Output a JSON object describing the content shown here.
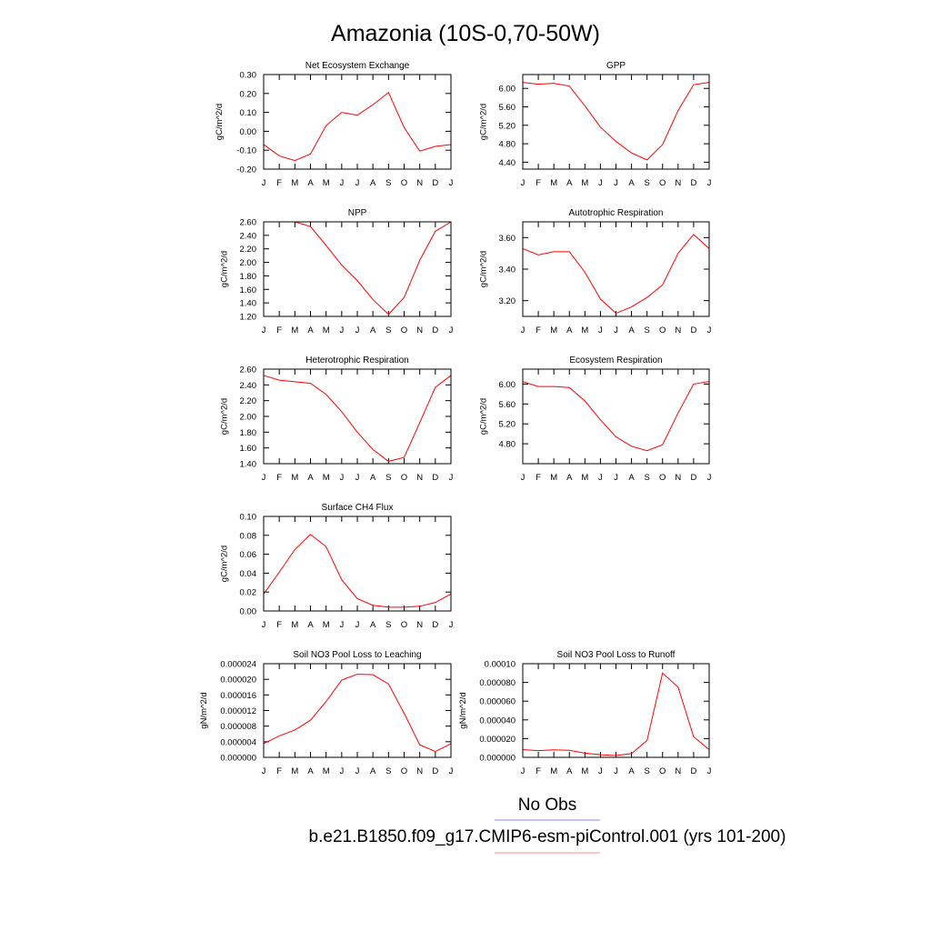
{
  "title": "Amazonia (10S-0,70-50W)",
  "legend": [
    {
      "label": "No Obs",
      "color": "#8888ff"
    },
    {
      "label": "b.e21.B1850.f09_g17.CMIP6-esm-piControl.001 (yrs 101-200)",
      "color": "#ff8888"
    }
  ],
  "chart_data": [
    {
      "type": "line",
      "title": "Net Ecosystem Exchange",
      "ylabel": "gC/m^2/d",
      "x": [
        "J",
        "F",
        "M",
        "A",
        "M",
        "J",
        "J",
        "A",
        "S",
        "O",
        "N",
        "D",
        "J"
      ],
      "ylim": [
        -0.2,
        0.3
      ],
      "yticks": [
        -0.2,
        -0.1,
        0.0,
        0.1,
        0.2,
        0.3
      ],
      "ytick_labels": [
        "-0.20",
        "-0.10",
        "0.00",
        "0.10",
        "0.20",
        "0.30"
      ],
      "series": [
        {
          "color": "#ff0000",
          "values": [
            -0.07,
            -0.13,
            -0.155,
            -0.12,
            0.03,
            0.1,
            0.085,
            0.14,
            0.205,
            0.02,
            -0.105,
            -0.08,
            -0.07
          ]
        }
      ]
    },
    {
      "type": "line",
      "title": "GPP",
      "ylabel": "gC/m^2/d",
      "x": [
        "J",
        "F",
        "M",
        "A",
        "M",
        "J",
        "J",
        "A",
        "S",
        "O",
        "N",
        "D",
        "J"
      ],
      "ylim": [
        4.25,
        6.3
      ],
      "yticks": [
        4.4,
        4.8,
        5.2,
        5.6,
        6.0
      ],
      "ytick_labels": [
        "4.40",
        "4.80",
        "5.20",
        "5.60",
        "6.00"
      ],
      "series": [
        {
          "color": "#ff0000",
          "values": [
            6.13,
            6.09,
            6.11,
            6.05,
            5.62,
            5.16,
            4.85,
            4.6,
            4.45,
            4.78,
            5.52,
            6.08,
            6.13
          ]
        }
      ]
    },
    {
      "type": "line",
      "title": "NPP",
      "ylabel": "gC/m^2/d",
      "x": [
        "J",
        "F",
        "M",
        "A",
        "M",
        "J",
        "J",
        "A",
        "S",
        "O",
        "N",
        "D",
        "J"
      ],
      "ylim": [
        1.2,
        2.6
      ],
      "yticks": [
        1.2,
        1.4,
        1.6,
        1.8,
        2.0,
        2.2,
        2.4,
        2.6
      ],
      "ytick_labels": [
        "1.20",
        "1.40",
        "1.60",
        "1.80",
        "2.00",
        "2.20",
        "2.40",
        "2.60"
      ],
      "series": [
        {
          "color": "#ff0000",
          "values": [
            2.6,
            2.6,
            2.6,
            2.53,
            2.25,
            1.96,
            1.73,
            1.45,
            1.23,
            1.48,
            2.03,
            2.46,
            2.6
          ]
        }
      ]
    },
    {
      "type": "line",
      "title": "Autotrophic Respiration",
      "ylabel": "gC/m^2/d",
      "x": [
        "J",
        "F",
        "M",
        "A",
        "M",
        "J",
        "J",
        "A",
        "S",
        "O",
        "N",
        "D",
        "J"
      ],
      "ylim": [
        3.1,
        3.7
      ],
      "yticks": [
        3.2,
        3.4,
        3.6
      ],
      "ytick_labels": [
        "3.20",
        "3.40",
        "3.60"
      ],
      "series": [
        {
          "color": "#ff0000",
          "values": [
            3.53,
            3.49,
            3.51,
            3.51,
            3.38,
            3.21,
            3.12,
            3.16,
            3.22,
            3.3,
            3.5,
            3.62,
            3.53
          ]
        }
      ]
    },
    {
      "type": "line",
      "title": "Heterotrophic Respiration",
      "ylabel": "gC/m^2/d",
      "x": [
        "J",
        "F",
        "M",
        "A",
        "M",
        "J",
        "J",
        "A",
        "S",
        "O",
        "N",
        "D",
        "J"
      ],
      "ylim": [
        1.4,
        2.6
      ],
      "yticks": [
        1.4,
        1.6,
        1.8,
        2.0,
        2.2,
        2.4,
        2.6
      ],
      "ytick_labels": [
        "1.40",
        "1.60",
        "1.80",
        "2.00",
        "2.20",
        "2.40",
        "2.60"
      ],
      "series": [
        {
          "color": "#ff0000",
          "values": [
            2.52,
            2.46,
            2.44,
            2.42,
            2.28,
            2.06,
            1.8,
            1.58,
            1.43,
            1.48,
            1.92,
            2.37,
            2.52
          ]
        }
      ]
    },
    {
      "type": "line",
      "title": "Ecosystem Respiration",
      "ylabel": "gC/m^2/d",
      "x": [
        "J",
        "F",
        "M",
        "A",
        "M",
        "J",
        "J",
        "A",
        "S",
        "O",
        "N",
        "D",
        "J"
      ],
      "ylim": [
        4.4,
        6.3
      ],
      "yticks": [
        4.8,
        5.2,
        5.6,
        6.0
      ],
      "ytick_labels": [
        "4.80",
        "5.20",
        "5.60",
        "6.00"
      ],
      "series": [
        {
          "color": "#ff0000",
          "values": [
            6.05,
            5.95,
            5.95,
            5.93,
            5.66,
            5.28,
            4.94,
            4.75,
            4.66,
            4.78,
            5.42,
            6.0,
            6.05
          ]
        }
      ]
    },
    {
      "type": "line",
      "title": "Surface CH4 Flux",
      "ylabel": "gC/m^2/d",
      "x": [
        "J",
        "F",
        "M",
        "A",
        "M",
        "J",
        "J",
        "A",
        "S",
        "O",
        "N",
        "D",
        "J"
      ],
      "ylim": [
        0.0,
        0.1
      ],
      "yticks": [
        0.0,
        0.02,
        0.04,
        0.06,
        0.08,
        0.1
      ],
      "ytick_labels": [
        "0.00",
        "0.02",
        "0.04",
        "0.06",
        "0.08",
        "0.10"
      ],
      "series": [
        {
          "color": "#ff0000",
          "values": [
            0.018,
            0.041,
            0.065,
            0.081,
            0.068,
            0.033,
            0.013,
            0.006,
            0.004,
            0.004,
            0.005,
            0.009,
            0.018
          ]
        }
      ]
    },
    {
      "type": "line",
      "title": "Soil NO3 Pool Loss to Leaching",
      "ylabel": "gN/m^2/d",
      "x": [
        "J",
        "F",
        "M",
        "A",
        "M",
        "J",
        "J",
        "A",
        "S",
        "O",
        "N",
        "D",
        "J"
      ],
      "ylim": [
        0.0,
        2.4e-05
      ],
      "yticks": [
        0.0,
        4e-06,
        8e-06,
        1.2e-05,
        1.6e-05,
        2e-05,
        2.4e-05
      ],
      "ytick_labels": [
        "0.000000",
        "0.000004",
        "0.000008",
        "0.000012",
        "0.000016",
        "0.000020",
        "0.000024"
      ],
      "series": [
        {
          "color": "#ff0000",
          "values": [
            3.5e-06,
            5.5e-06,
            7e-06,
            9.5e-06,
            1.43e-05,
            1.98e-05,
            2.13e-05,
            2.12e-05,
            1.88e-05,
            1.13e-05,
            3.2e-06,
            1.5e-06,
            3.5e-06
          ]
        }
      ]
    },
    {
      "type": "line",
      "title": "Soil NO3 Pool Loss to Runoff",
      "ylabel": "gN/m^2/d",
      "x": [
        "J",
        "F",
        "M",
        "A",
        "M",
        "J",
        "J",
        "A",
        "S",
        "O",
        "N",
        "D",
        "J"
      ],
      "ylim": [
        0.0,
        0.0001
      ],
      "yticks": [
        0.0,
        2e-05,
        4e-05,
        6e-05,
        8e-05,
        0.0001
      ],
      "ytick_labels": [
        "0.000000",
        "0.000020",
        "0.000040",
        "0.000060",
        "0.000080",
        "0.00010"
      ],
      "series": [
        {
          "color": "#ff0000",
          "values": [
            8.2e-06,
            7.2e-06,
            8e-06,
            7.5e-06,
            4.5e-06,
            2.8e-06,
            2e-06,
            4e-06,
            1.8e-05,
            9e-05,
            7.5e-05,
            2.2e-05,
            8.2e-06
          ]
        }
      ]
    }
  ]
}
